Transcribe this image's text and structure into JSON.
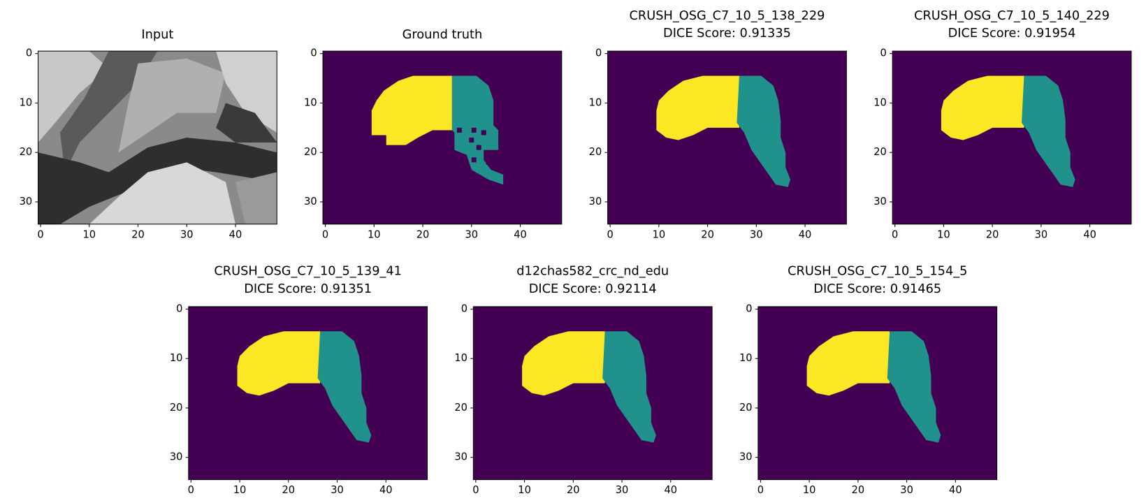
{
  "chart_data": [
    {
      "type": "image",
      "cmap": "gray",
      "title": "Input",
      "xlim": [
        -0.5,
        48.5
      ],
      "ylim": [
        34.5,
        -0.5
      ],
      "xticks": [
        0,
        10,
        20,
        30,
        40
      ],
      "yticks": [
        0,
        10,
        20,
        30
      ]
    },
    {
      "type": "image",
      "cmap": "viridis",
      "title": "Ground truth",
      "xlim": [
        -0.5,
        48.5
      ],
      "ylim": [
        34.5,
        -0.5
      ],
      "xticks": [
        0,
        10,
        20,
        30,
        40
      ],
      "yticks": [
        0,
        10,
        20,
        30
      ]
    },
    {
      "type": "image",
      "cmap": "viridis",
      "title": "CRUSH_OSG_C7_10_5_138_229",
      "subtitle": "DICE Score: 0.91335",
      "xlim": [
        -0.5,
        48.5
      ],
      "ylim": [
        34.5,
        -0.5
      ],
      "xticks": [
        0,
        10,
        20,
        30,
        40
      ],
      "yticks": [
        0,
        10,
        20,
        30
      ]
    },
    {
      "type": "image",
      "cmap": "viridis",
      "title": "CRUSH_OSG_C7_10_5_140_229",
      "subtitle": "DICE Score: 0.91954",
      "xlim": [
        -0.5,
        48.5
      ],
      "ylim": [
        34.5,
        -0.5
      ],
      "xticks": [
        0,
        10,
        20,
        30,
        40
      ],
      "yticks": [
        0,
        10,
        20,
        30
      ]
    },
    {
      "type": "image",
      "cmap": "viridis",
      "title": "CRUSH_OSG_C7_10_5_139_41",
      "subtitle": "DICE Score: 0.91351",
      "xlim": [
        -0.5,
        48.5
      ],
      "ylim": [
        34.5,
        -0.5
      ],
      "xticks": [
        0,
        10,
        20,
        30,
        40
      ],
      "yticks": [
        0,
        10,
        20,
        30
      ]
    },
    {
      "type": "image",
      "cmap": "viridis",
      "title": "d12chas582_crc_nd_edu",
      "subtitle": "DICE Score: 0.92114",
      "xlim": [
        -0.5,
        48.5
      ],
      "ylim": [
        34.5,
        -0.5
      ],
      "xticks": [
        0,
        10,
        20,
        30,
        40
      ],
      "yticks": [
        0,
        10,
        20,
        30
      ]
    },
    {
      "type": "image",
      "cmap": "viridis",
      "title": "CRUSH_OSG_C7_10_5_154_5",
      "subtitle": "DICE Score: 0.91465",
      "xlim": [
        -0.5,
        48.5
      ],
      "ylim": [
        34.5,
        -0.5
      ],
      "xticks": [
        0,
        10,
        20,
        30,
        40
      ],
      "yticks": [
        0,
        10,
        20,
        30
      ]
    }
  ]
}
